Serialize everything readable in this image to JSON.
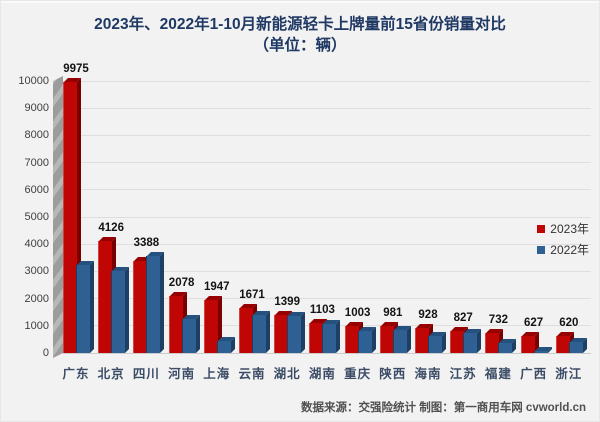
{
  "title": {
    "line1": "2023年、2022年1-10月新能源轻卡上牌量前15省份销量对比",
    "line2": "（单位：辆）"
  },
  "footer": {
    "source": "数据来源：交强险统计 制图：第一商用车网 cvworld.cn"
  },
  "colors": {
    "series_2023": "#c00505",
    "series_2022": "#2e6094",
    "title_text": "#1f3864",
    "background": "#f1f2f1",
    "gridline": "#dedede"
  },
  "chart_data": {
    "type": "bar",
    "title": "2023年、2022年1-10月新能源轻卡上牌量前15省份销量对比",
    "subtitle": "（单位：辆）",
    "unit": "辆",
    "categories": [
      "广东",
      "北京",
      "四川",
      "河南",
      "上海",
      "云南",
      "湖北",
      "湖南",
      "重庆",
      "陕西",
      "海南",
      "江苏",
      "福建",
      "广西",
      "浙江"
    ],
    "series": [
      {
        "name": "2023年",
        "color": "#c00505",
        "values": [
          9975,
          4126,
          3388,
          2078,
          1947,
          1671,
          1399,
          1103,
          1003,
          981,
          928,
          827,
          732,
          627,
          620
        ],
        "labels_shown": true
      },
      {
        "name": "2022年",
        "color": "#2e6094",
        "values": [
          3250,
          3000,
          3550,
          1250,
          450,
          1400,
          1350,
          1080,
          800,
          860,
          630,
          730,
          350,
          80,
          420
        ],
        "labels_shown": false
      }
    ],
    "ylabel": "",
    "xlabel": "",
    "ylim": [
      0,
      10000
    ],
    "ytick_step": 1000,
    "grid": true,
    "legend_position": "right-inside",
    "style": "3d-column"
  }
}
